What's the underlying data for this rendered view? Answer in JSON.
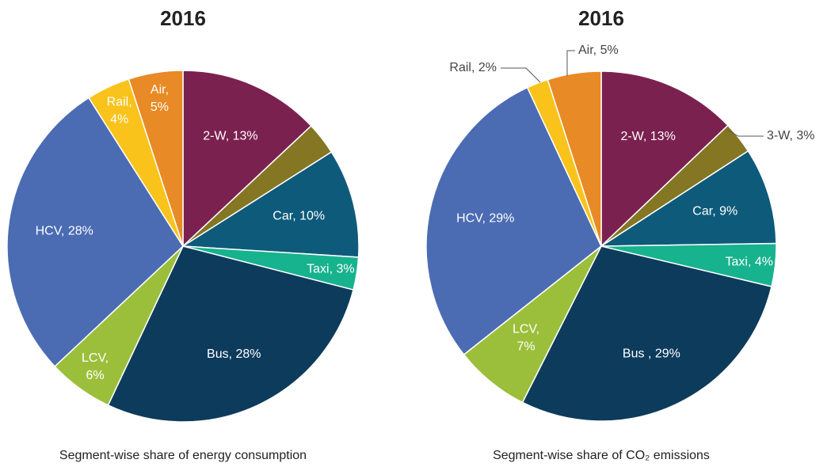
{
  "chart_data": [
    {
      "type": "pie",
      "title": "2016",
      "caption": "Segment-wise share of energy consumption",
      "values": [
        13,
        3,
        10,
        3,
        28,
        6,
        28,
        4,
        5
      ],
      "labels": [
        [
          "2-W, 13%"
        ],
        null,
        [
          "Car, 10%"
        ],
        [
          "Taxi, 3%"
        ],
        [
          "Bus, 28%"
        ],
        [
          "LCV,",
          "6%"
        ],
        [
          "HCV, 28%"
        ],
        [
          "Rail,",
          "4%"
        ],
        [
          "Air,",
          "5%"
        ]
      ],
      "colors": [
        "#7b2150",
        "#857624",
        "#0e5a7a",
        "#17b28e",
        "#0d3b5c",
        "#9cbf3b",
        "#4b6cb3",
        "#f9c31c",
        "#e88a25"
      ]
    },
    {
      "type": "pie",
      "title": "2016",
      "caption": "Segment-wise share of CO₂ emissions",
      "values": [
        13,
        3,
        9,
        4,
        29,
        7,
        29,
        2,
        5
      ],
      "labels": [
        [
          "2-W, 13%"
        ],
        [
          "3-W, 3%"
        ],
        [
          "Car, 9%"
        ],
        [
          "Taxi, 4%"
        ],
        [
          "Bus , 29%"
        ],
        [
          "LCV,",
          "7%"
        ],
        [
          "HCV, 29%"
        ],
        [
          "Rail, 2%"
        ],
        [
          "Air, 5%"
        ]
      ],
      "colors": [
        "#7b2150",
        "#857624",
        "#0e5a7a",
        "#17b28e",
        "#0d3b5c",
        "#9cbf3b",
        "#4b6cb3",
        "#f9c31c",
        "#e88a25"
      ]
    }
  ]
}
